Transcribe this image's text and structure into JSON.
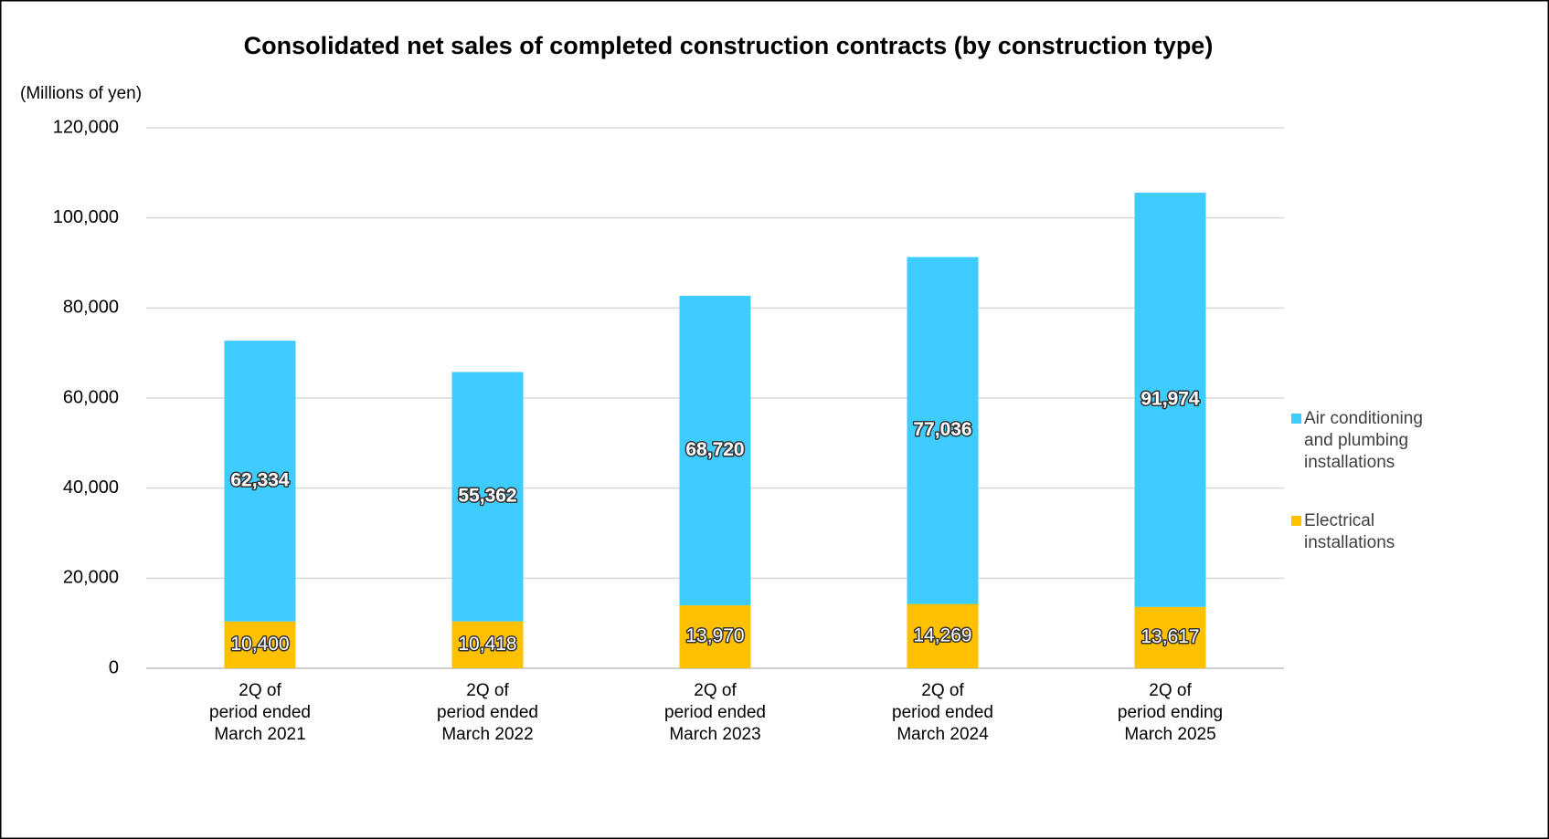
{
  "chart_data": {
    "type": "stacked_bar",
    "title": "Consolidated net sales of completed construction contracts (by construction type)",
    "y_label": "(Millions of yen)",
    "categories": [
      "2Q of\nperiod ended\nMarch 2021",
      "2Q of\nperiod ended\nMarch 2022",
      "2Q of\nperiod ended\nMarch 2023",
      "2Q of\nperiod ended\nMarch 2024",
      "2Q of\nperiod ending\nMarch 2025"
    ],
    "series": [
      {
        "name": "Electrical\ninstallations",
        "color": "#ffc000",
        "values": [
          10400,
          10418,
          13970,
          14269,
          13617
        ],
        "value_labels": [
          "10,400",
          "10,418",
          "13,970",
          "14,269",
          "13,617"
        ]
      },
      {
        "name": "Air conditioning\nand plumbing\ninstallations",
        "color": "#3ecbfd",
        "values": [
          62334,
          55362,
          68720,
          77036,
          91974
        ],
        "value_labels": [
          "62,334",
          "55,362",
          "68,720",
          "77,036",
          "91,974"
        ]
      }
    ],
    "ylim": [
      0,
      120000
    ],
    "yticks": [
      0,
      {
        "value": 20000,
        "label": "20,000"
      },
      {
        "value": 40000,
        "label": "40,000"
      },
      {
        "value": 60000,
        "label": "60,000"
      },
      {
        "value": 80000,
        "label": "80,000"
      },
      {
        "value": 100000,
        "label": "100,000"
      },
      {
        "value": 120000,
        "label": "120,000"
      }
    ],
    "grid": true,
    "legend": "right"
  }
}
